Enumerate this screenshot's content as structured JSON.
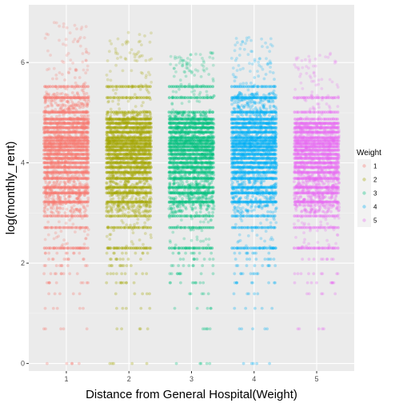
{
  "chart_data": {
    "type": "scatter",
    "subtype": "jitter",
    "xlabel": "Distance from General Hospital(Weight)",
    "ylabel": "log(monthly_rent)",
    "categories": [
      "1",
      "2",
      "3",
      "4",
      "5"
    ],
    "x_ticks": [
      "1",
      "2",
      "3",
      "4",
      "5"
    ],
    "y_ticks": [
      0,
      2,
      4,
      6
    ],
    "xlim": [
      0.4,
      5.6
    ],
    "ylim": [
      -0.15,
      7.15
    ],
    "grid": true,
    "legend": {
      "title": "Weight",
      "position": "right",
      "entries": [
        "1",
        "2",
        "3",
        "4",
        "5"
      ]
    },
    "colors": [
      "#f8766d",
      "#a3a500",
      "#00bf7d",
      "#00b0f6",
      "#e76bf3"
    ],
    "series": [
      {
        "name": "1",
        "core_range": [
          2.3,
          5.8
        ],
        "dense_range": [
          3.0,
          5.4
        ],
        "max": 6.8,
        "tail_levels": [
          0.0,
          0.69,
          1.1,
          1.39,
          1.61,
          1.79,
          1.95,
          2.08,
          2.2,
          2.3
        ]
      },
      {
        "name": "2",
        "core_range": [
          2.3,
          5.6
        ],
        "dense_range": [
          3.0,
          5.0
        ],
        "max": 6.6,
        "tail_levels": [
          0.0,
          0.69,
          1.1,
          1.39,
          1.61,
          1.79,
          1.95,
          2.08,
          2.2,
          2.3
        ]
      },
      {
        "name": "3",
        "core_range": [
          2.3,
          5.8
        ],
        "dense_range": [
          3.0,
          5.0
        ],
        "max": 6.2,
        "tail_levels": [
          0.0,
          0.69,
          1.1,
          1.39,
          1.61,
          1.79,
          1.95,
          2.08,
          2.2,
          2.3
        ]
      },
      {
        "name": "4",
        "core_range": [
          2.3,
          5.8
        ],
        "dense_range": [
          3.0,
          5.4
        ],
        "max": 6.5,
        "tail_levels": [
          0.0,
          0.69,
          1.1,
          1.39,
          1.61,
          1.79,
          1.95,
          2.08,
          2.2,
          2.3
        ]
      },
      {
        "name": "5",
        "core_range": [
          2.3,
          5.3
        ],
        "dense_range": [
          3.0,
          4.8
        ],
        "max": 6.2,
        "tail_levels": [
          0.69,
          1.39,
          1.61,
          1.79,
          2.08,
          2.3
        ]
      }
    ]
  }
}
